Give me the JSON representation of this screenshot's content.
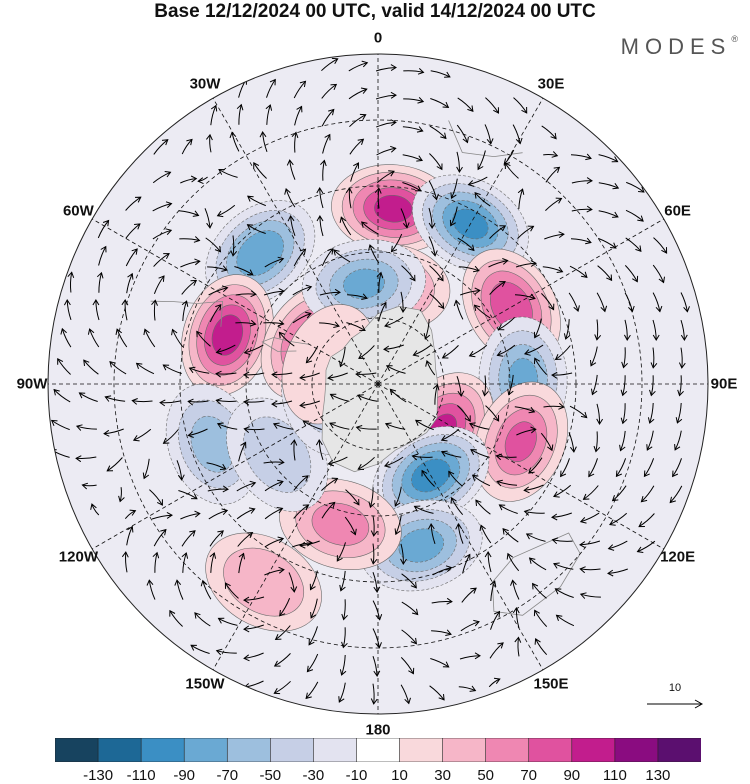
{
  "title": "Base 12/12/2024 00 UTC, valid 14/12/2024 00 UTC",
  "brand": "MODES",
  "brand_mark": "®",
  "longitude_labels": [
    {
      "key": "0",
      "text": "0",
      "lon": 0
    },
    {
      "key": "30e",
      "text": "30E",
      "lon": 30
    },
    {
      "key": "60e",
      "text": "60E",
      "lon": 60
    },
    {
      "key": "90e",
      "text": "90E",
      "lon": 90
    },
    {
      "key": "120e",
      "text": "120E",
      "lon": 120
    },
    {
      "key": "150e",
      "text": "150E",
      "lon": 150
    },
    {
      "key": "180",
      "text": "180",
      "lon": 180
    },
    {
      "key": "150w",
      "text": "150W",
      "lon": -150
    },
    {
      "key": "120w",
      "text": "120W",
      "lon": -120
    },
    {
      "key": "90w",
      "text": "90W",
      "lon": -90
    },
    {
      "key": "60w",
      "text": "60W",
      "lon": -60
    },
    {
      "key": "30w",
      "text": "30W",
      "lon": -30
    }
  ],
  "reference_vector": {
    "label": "10",
    "value": 10
  },
  "colorbar": {
    "ticks": [
      "-130",
      "-110",
      "-90",
      "-70",
      "-50",
      "-30",
      "-10",
      "10",
      "30",
      "50",
      "70",
      "90",
      "110",
      "130"
    ],
    "colors": [
      "#17435f",
      "#1d6896",
      "#3b8fc4",
      "#6aa9d3",
      "#9dbfde",
      "#c6cfe6",
      "#e3e3f0",
      "#ffffff",
      "#f9d9dc",
      "#f6b6c8",
      "#ef87b2",
      "#e0529f",
      "#c21d8d",
      "#8a0c80",
      "#5b0f6f"
    ]
  },
  "anomaly_centers": [
    {
      "lon": 5,
      "lat_deg": 40,
      "value": 95
    },
    {
      "lon": 30,
      "lat_deg": 42,
      "value": -95
    },
    {
      "lon": -42,
      "lat_deg": 40,
      "value": -85
    },
    {
      "lon": -72,
      "lat_deg": 36,
      "value": 100
    },
    {
      "lon": 60,
      "lat_deg": 35,
      "value": 85
    },
    {
      "lon": 88,
      "lat_deg": 33,
      "value": -70
    },
    {
      "lon": 125,
      "lat_deg": 18,
      "value": 90
    },
    {
      "lon": 112,
      "lat_deg": 35,
      "value": 70
    },
    {
      "lon": 150,
      "lat_deg": 24,
      "value": -100
    },
    {
      "lon": 165,
      "lat_deg": 38,
      "value": -75
    },
    {
      "lon": -165,
      "lat_deg": 33,
      "value": 55
    },
    {
      "lon": -150,
      "lat_deg": 52,
      "value": 45
    },
    {
      "lon": -110,
      "lat_deg": 40,
      "value": -55
    },
    {
      "lon": -125,
      "lat_deg": 28,
      "value": -40
    },
    {
      "lon": -58,
      "lat_deg": 18,
      "value": 80
    },
    {
      "lon": -100,
      "lat_deg": 12,
      "value": -40
    },
    {
      "lon": 6,
      "lat_deg": 22,
      "value": 60
    },
    {
      "lon": -8,
      "lat_deg": 23,
      "value": -70
    },
    {
      "lon": -68,
      "lat_deg": 12,
      "value": 20
    }
  ]
}
